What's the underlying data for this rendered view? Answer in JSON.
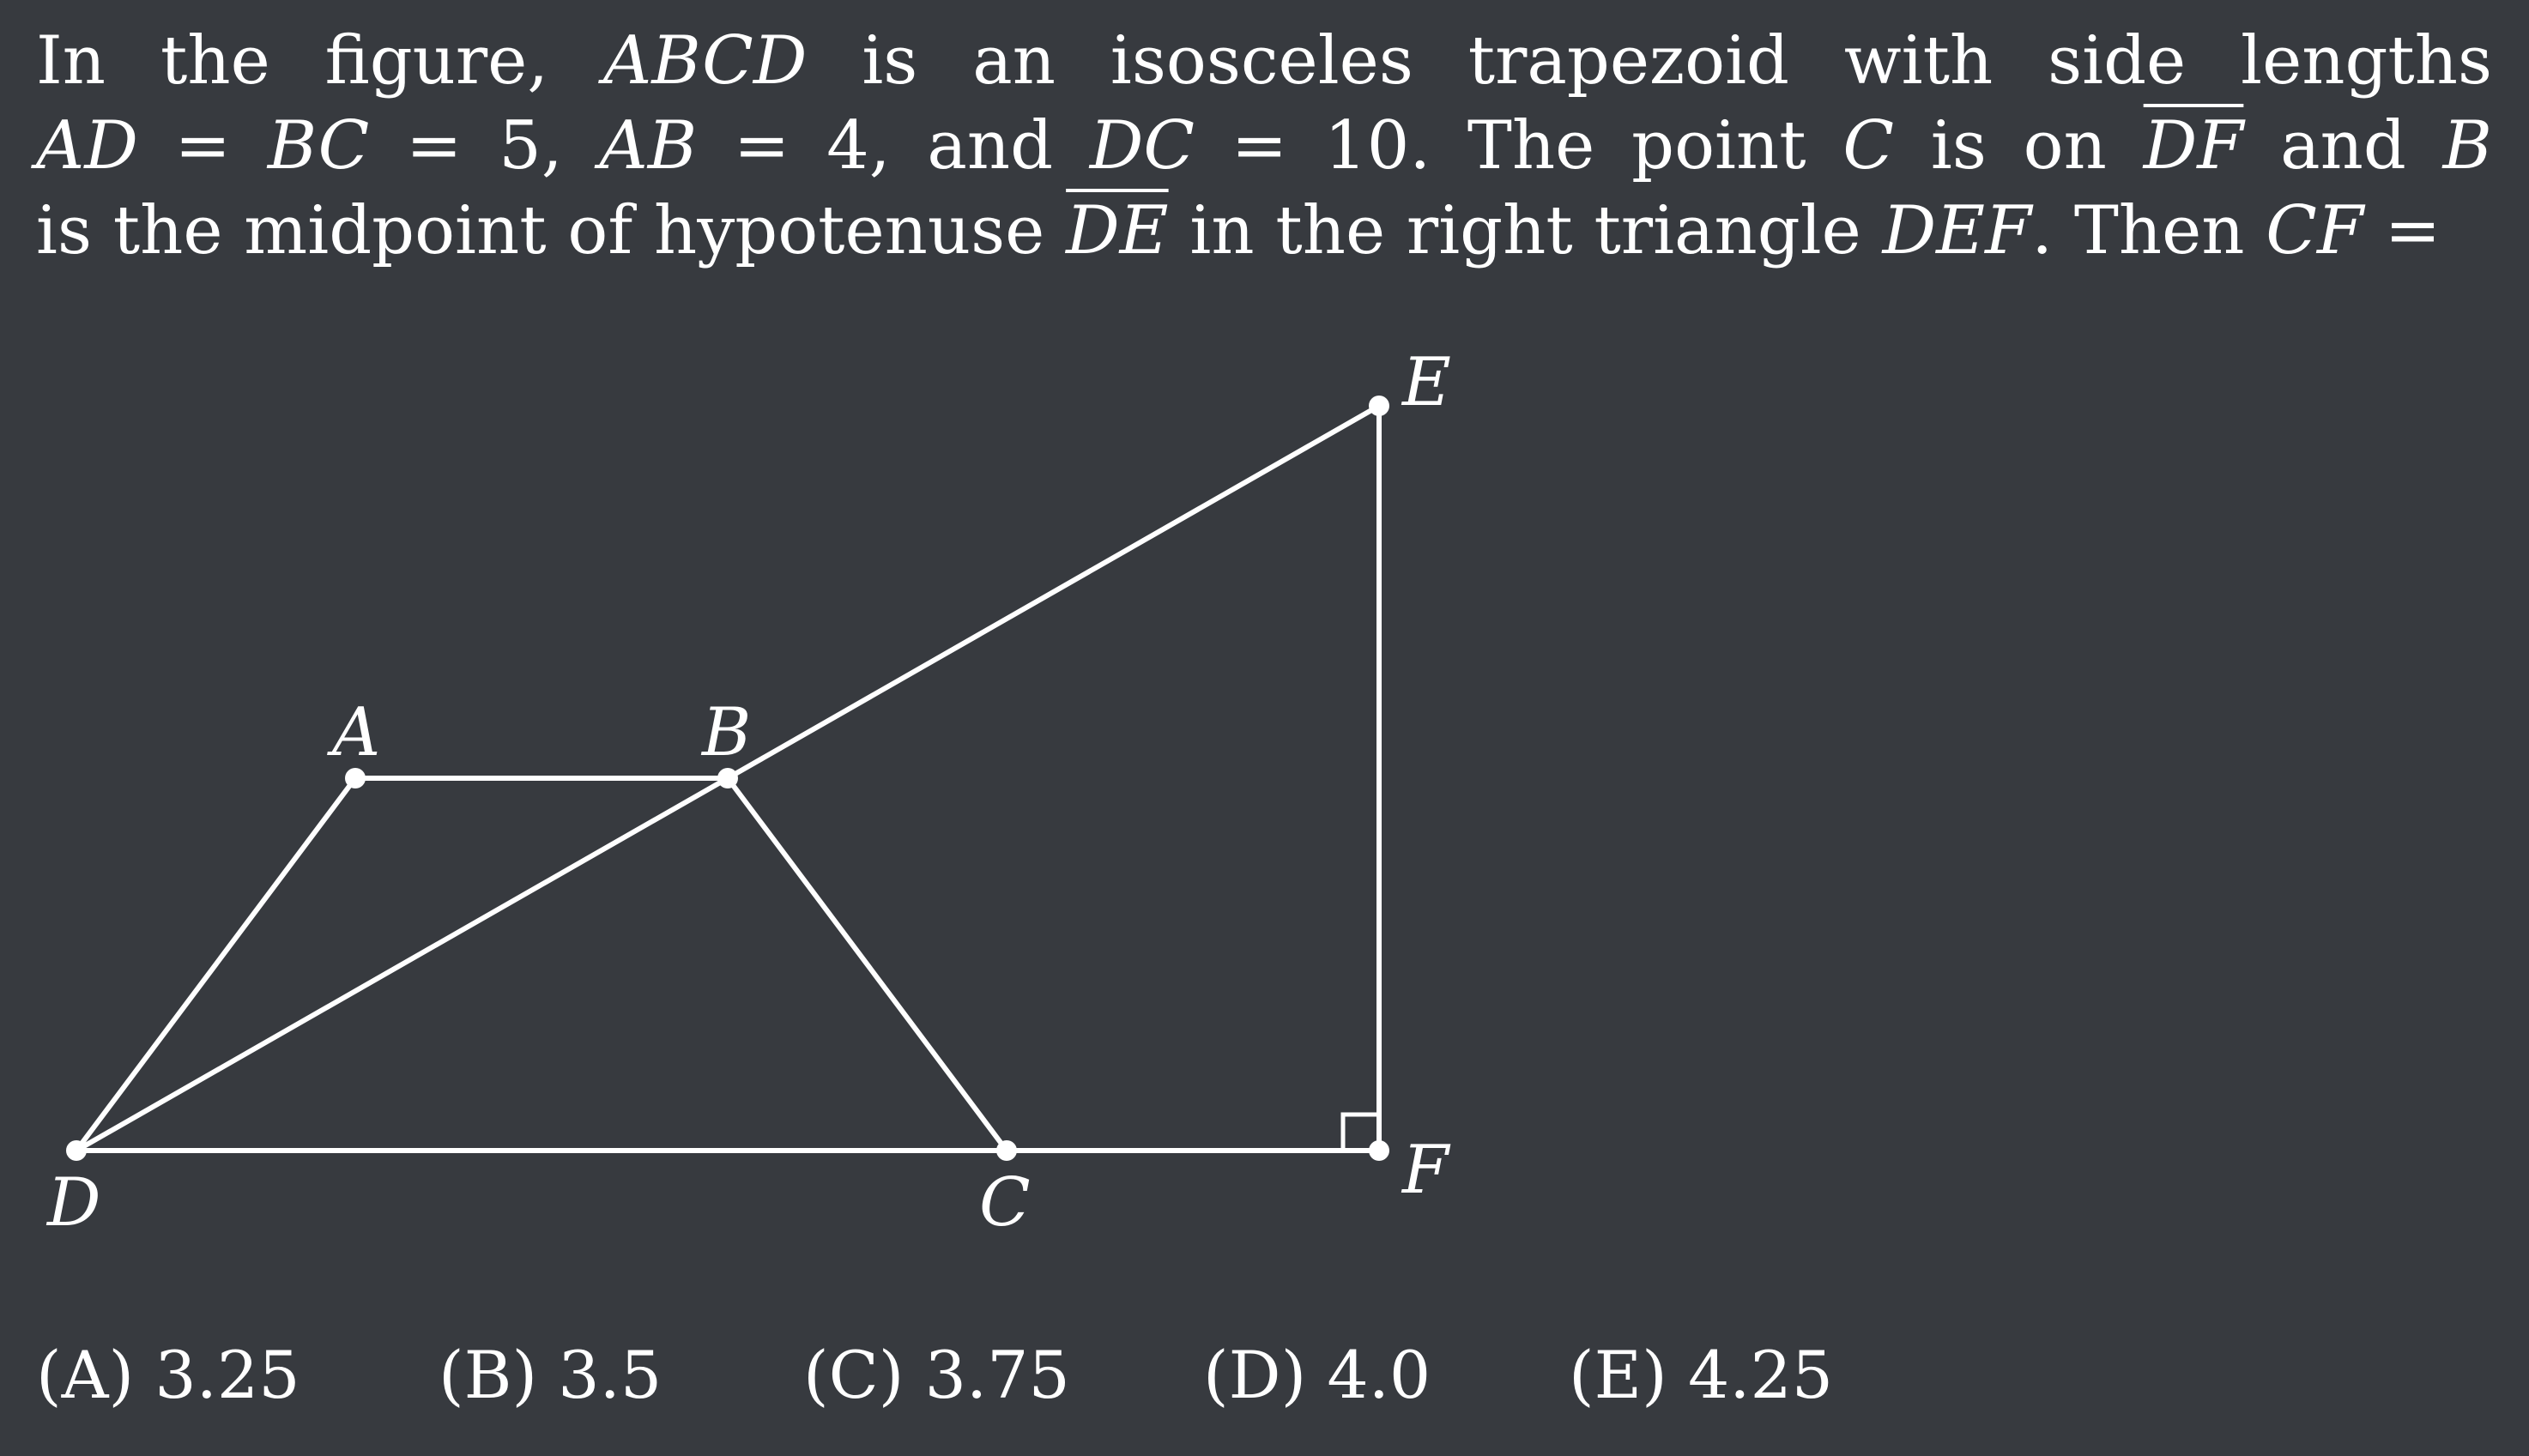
{
  "problem": {
    "line1": "In the figure, ABCD is an isosceles trapezoid with side lengths",
    "line2": "AD = BC = 5, AB = 4, and DC = 10. The point C is on DF and B",
    "line3": "is the midpoint of hypotenuse DE in the right triangle DEF. Then CF ="
  },
  "diagram": {
    "points": {
      "A": "A",
      "B": "B",
      "C": "C",
      "D": "D",
      "E": "E",
      "F": "F"
    },
    "line_color": "#ffffff",
    "background": "#373a3f"
  },
  "choices": [
    "(A) 3.25",
    "(B) 3.5",
    "(C) 3.75",
    "(D) 4.0",
    "(E) 4.25"
  ]
}
